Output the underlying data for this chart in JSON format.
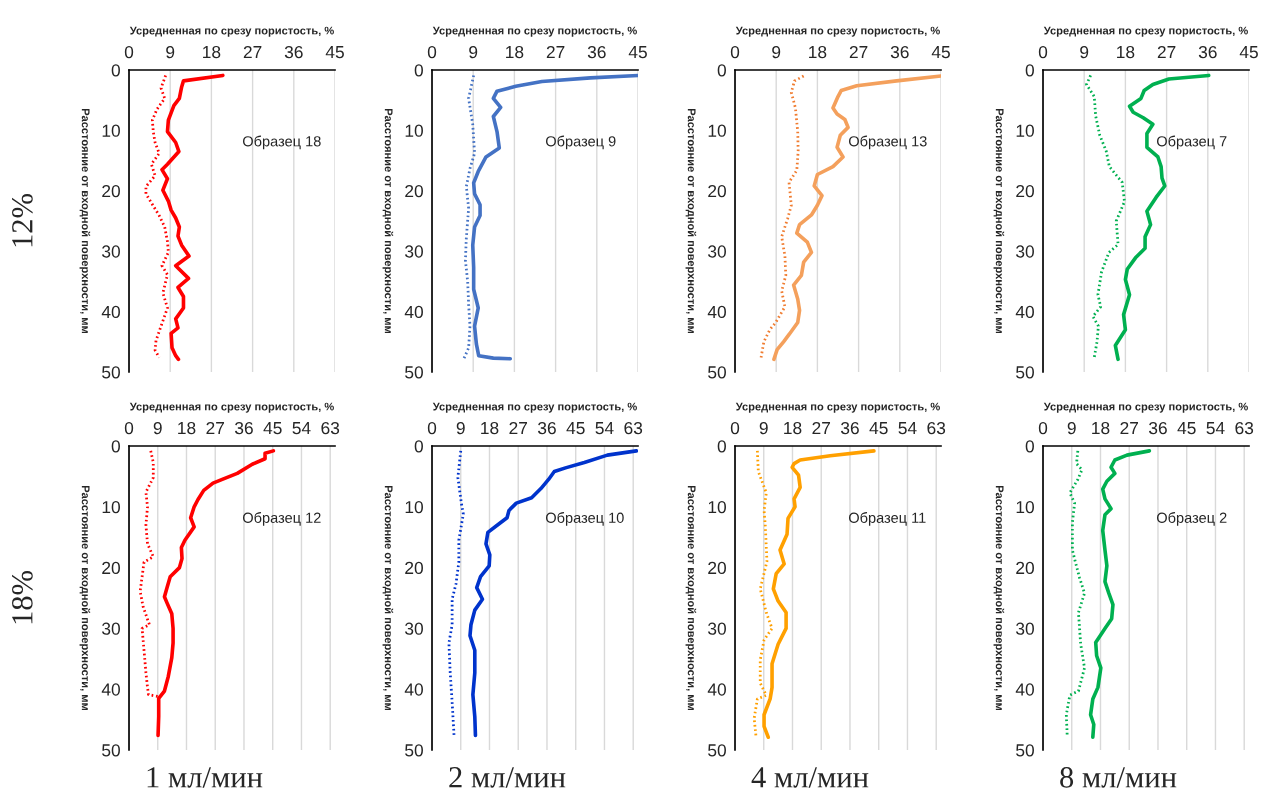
{
  "chart_data": [
    {
      "type": "line",
      "xlabel": "Усредненная по срезу пористость, %",
      "ylabel": "Расстояние от входной поверхности, мм",
      "xlim": [
        0,
        45
      ],
      "xticks": [
        0,
        9,
        18,
        27,
        36,
        45
      ],
      "ylim": [
        50,
        0
      ],
      "yticks": [
        0,
        10,
        20,
        30,
        40,
        50
      ],
      "grid": "x",
      "annotations": [
        "Образец 18",
        "12%"
      ],
      "series": [
        {
          "color": "#ff0000",
          "line_style": "solid",
          "x": [
            20.5,
            11.9,
            11.5,
            11,
            9.8,
            8.6,
            8.4,
            10.2,
            10.9,
            8.4,
            7.2,
            8.4,
            7.4,
            8.6,
            9.2,
            10.2,
            11,
            10.7,
            11.5,
            13.1,
            10.2,
            13,
            10.7,
            11.9,
            11.9,
            10.2,
            10.7,
            9.2,
            9.4,
            10.2,
            10.8
          ],
          "values": [
            0.9,
            1.8,
            2.8,
            4.7,
            5.9,
            8.3,
            10.2,
            12,
            13.5,
            15.6,
            16.5,
            18,
            19.9,
            21.7,
            23.2,
            24.5,
            26,
            27.5,
            29,
            30.8,
            32.4,
            34.5,
            36,
            37.5,
            39.4,
            41.2,
            42.7,
            43.6,
            46,
            47.3,
            47.9
          ]
        },
        {
          "color": "#ff0000",
          "line_style": "dotted",
          "x": [
            8,
            7,
            7.8,
            6.1,
            5.1,
            5.3,
            5.7,
            6.6,
            4.9,
            5.7,
            3.7,
            3.7,
            4.9,
            6.6,
            7.8,
            8.4,
            8.6,
            7.2,
            8.4,
            7.4,
            8.4,
            7,
            5.9,
            5.7,
            6.6
          ],
          "values": [
            0.9,
            3,
            4.7,
            6.5,
            8.3,
            10.2,
            12,
            13.8,
            15.6,
            17.5,
            19.3,
            20.5,
            22,
            24.1,
            26,
            28.4,
            30.2,
            32.4,
            33.9,
            36.9,
            39.4,
            42.4,
            44.8,
            46.4,
            47.6
          ]
        }
      ]
    },
    {
      "type": "line",
      "xlabel": "Усредненная по срезу пористость, %",
      "ylabel": "Расстояние от входной поверхности, мм",
      "xlim": [
        0,
        45
      ],
      "xticks": [
        0,
        9,
        18,
        27,
        36,
        45
      ],
      "ylim": [
        50,
        0
      ],
      "yticks": [
        0,
        10,
        20,
        30,
        40,
        50
      ],
      "grid": "x",
      "annotations": [
        "Образец 9"
      ],
      "series": [
        {
          "color": "#4472c4",
          "line_style": "solid",
          "x": [
            45,
            34.6,
            24,
            18.3,
            14.2,
            13.4,
            15,
            13.4,
            14.2,
            14.7,
            11.8,
            10.1,
            9.1,
            9.3,
            10.5,
            10.5,
            9.3,
            8.9,
            9.1,
            9.1,
            10.1,
            9.3,
            9.7,
            10.2,
            13.4,
            17.1
          ],
          "values": [
            0.9,
            1.3,
            1.9,
            2.7,
            3.5,
            4.7,
            6.2,
            7.7,
            10.2,
            12.9,
            14.4,
            16.8,
            18.7,
            20.5,
            22.3,
            24.1,
            26,
            29,
            32.7,
            36.3,
            39.4,
            42.4,
            45.4,
            47.3,
            47.7,
            47.8
          ]
        },
        {
          "color": "#4472c4",
          "line_style": "dotted",
          "x": [
            9.1,
            8,
            8.9,
            9.3,
            8.3,
            7.5,
            8,
            7.5,
            7.3,
            7.8,
            8,
            8.3,
            8,
            6.9
          ],
          "values": [
            0.9,
            4.7,
            9,
            13.8,
            16.3,
            19.3,
            22.9,
            27.8,
            31.5,
            35.1,
            38.8,
            42.4,
            46,
            47.9
          ]
        }
      ]
    },
    {
      "type": "line",
      "xlabel": "Усредненная по срезу пористость, %",
      "ylabel": "Расстояние от входной поверхности, мм",
      "xlim": [
        0,
        45
      ],
      "xticks": [
        0,
        9,
        18,
        27,
        36,
        45
      ],
      "ylim": [
        50,
        0
      ],
      "yticks": [
        0,
        10,
        20,
        30,
        40,
        50
      ],
      "grid": "x",
      "annotations": [
        "Образец 13"
      ],
      "series": [
        {
          "color": "#f4a05c",
          "line_style": "solid",
          "x": [
            45,
            35.3,
            26.6,
            23.2,
            22.5,
            21.4,
            22.3,
            24,
            24.7,
            23,
            22.3,
            23.6,
            21.4,
            18,
            17.3,
            19,
            18,
            16.7,
            14.1,
            13.5,
            15.8,
            16.7,
            15,
            14.5,
            12.8,
            13.7,
            14.1,
            13.7,
            11.9,
            10.6,
            9.2,
            8.5
          ],
          "values": [
            1,
            1.8,
            2.6,
            3.4,
            4.4,
            6.3,
            7.3,
            8.2,
            9.5,
            10.8,
            12.8,
            14.4,
            16,
            17.3,
            19.2,
            20.8,
            22.4,
            24,
            25.6,
            27,
            28.5,
            30.2,
            31.8,
            34,
            35.6,
            37.9,
            39.8,
            41.8,
            43.7,
            45,
            46.3,
            47.9
          ]
        },
        {
          "color": "#f07c30",
          "line_style": "dotted",
          "x": [
            15,
            13,
            12.3,
            13.2,
            13.7,
            13.8,
            13.5,
            11.8,
            12.3,
            11.5,
            10.2,
            10.9,
            11.1,
            10.2,
            10.9,
            8.9,
            7.6,
            6.3,
            5.7
          ],
          "values": [
            1,
            1.8,
            3.7,
            6.3,
            10.2,
            13.4,
            16.6,
            18.6,
            22.4,
            24.6,
            27.6,
            30.8,
            34,
            36.6,
            39.2,
            41.8,
            43,
            45,
            47.6
          ]
        }
      ]
    },
    {
      "type": "line",
      "xlabel": "Усредненная по срезу пористость, %",
      "ylabel": "Расстояние от входной поверхности, мм",
      "xlim": [
        0,
        45
      ],
      "xticks": [
        0,
        9,
        18,
        27,
        36,
        45
      ],
      "ylim": [
        50,
        0
      ],
      "yticks": [
        0,
        10,
        20,
        30,
        40,
        50
      ],
      "grid": "x",
      "annotations": [
        "Образец 7"
      ],
      "series": [
        {
          "color": "#00b050",
          "line_style": "solid",
          "x": [
            36.2,
            27.5,
            24,
            22.1,
            21.4,
            18.9,
            19.7,
            21.9,
            24,
            22.7,
            22.7,
            25.1,
            25.8,
            26,
            26.6,
            24.7,
            22.7,
            23.5,
            22.3,
            22.3,
            20.2,
            18.4,
            18,
            18.9,
            17.6,
            18,
            15.8,
            16.4
          ],
          "values": [
            0.9,
            1.5,
            2.4,
            3.4,
            4.7,
            6,
            7,
            7.9,
            9,
            10.5,
            12.8,
            14.4,
            16,
            17.9,
            19.2,
            21.1,
            23.4,
            25.6,
            27.6,
            29.5,
            31.1,
            33,
            34.7,
            37.2,
            40.5,
            43,
            45.6,
            47.9
          ]
        },
        {
          "color": "#00b050",
          "line_style": "dotted",
          "x": [
            10.4,
            9.5,
            11.2,
            11.5,
            12.4,
            13.8,
            14.5,
            17.3,
            17.8,
            16,
            16.4,
            14.4,
            12.8,
            12,
            12.6,
            10.9,
            12.1,
            11.8,
            11.2
          ],
          "values": [
            0.9,
            2.4,
            4.4,
            7.6,
            10.8,
            13.4,
            16,
            18.6,
            21.8,
            25,
            28.9,
            30.2,
            33.4,
            37.2,
            39.2,
            40.8,
            42.4,
            45,
            47.6
          ]
        }
      ]
    },
    {
      "type": "line",
      "xlabel": "Усредненная по срезу пористость, %",
      "ylabel": "Расстояние от входной поверхности, мм",
      "xlim": [
        0,
        64.5
      ],
      "xticks": [
        0,
        9,
        18,
        27,
        36,
        45,
        54,
        63
      ],
      "ylim": [
        50,
        0
      ],
      "yticks": [
        0,
        10,
        20,
        30,
        40,
        50
      ],
      "grid": "x",
      "annotations": [
        "Образец 12",
        "18%",
        "1 мл/мин"
      ],
      "series": [
        {
          "color": "#ff0000",
          "line_style": "solid",
          "x": [
            45.2,
            42.6,
            42.6,
            38.6,
            33.9,
            29.2,
            26.3,
            23.4,
            21.6,
            20.4,
            19.3,
            20.4,
            17.5,
            16.4,
            16.6,
            15.8,
            12.9,
            11.9,
            11.1,
            11.9,
            13.4,
            13.8,
            13.8,
            13.4,
            12.3,
            11.1,
            9.3,
            9.3,
            9.1
          ],
          "values": [
            0.8,
            1.2,
            2.1,
            3,
            4.5,
            5.5,
            6.1,
            7.3,
            8.8,
            10,
            11.8,
            13.3,
            15.5,
            16.7,
            18.5,
            20,
            21.5,
            23.3,
            24.8,
            25.8,
            27.6,
            30,
            32.4,
            34.8,
            37.9,
            40.3,
            41.5,
            44.5,
            47.6
          ]
        },
        {
          "color": "#ff0000",
          "line_style": "dotted",
          "x": [
            6.8,
            7.6,
            7.6,
            5.3,
            5.8,
            5.3,
            5.8,
            7.6,
            4.7,
            4.1,
            3.5,
            4.4,
            6.4,
            4.1,
            4.7,
            5.3,
            5.8,
            6.1,
            9.3
          ],
          "values": [
            0.8,
            2.7,
            5.2,
            7.6,
            10,
            13,
            16.1,
            18.2,
            19.1,
            21.5,
            23.9,
            26.4,
            29.4,
            30,
            33.6,
            37.3,
            39.7,
            40.9,
            41.2
          ]
        }
      ]
    },
    {
      "type": "line",
      "xlabel": "Усредненная по срезу пористость, %",
      "ylabel": "Расстояние от входной поверхности, мм",
      "xlim": [
        0,
        64.5
      ],
      "xticks": [
        0,
        9,
        18,
        27,
        36,
        45,
        54,
        63
      ],
      "ylim": [
        50,
        0
      ],
      "yticks": [
        0,
        10,
        20,
        30,
        40,
        50
      ],
      "grid": "x",
      "annotations": [
        "Образец 10",
        "2 мл/мин"
      ],
      "series": [
        {
          "color": "#0033cc",
          "line_style": "solid",
          "x": [
            64,
            54.9,
            47.7,
            41.8,
            38.3,
            36.5,
            34.1,
            31.2,
            26.4,
            24.1,
            23.5,
            20.5,
            17.5,
            16.9,
            18.1,
            17.9,
            15.2,
            14,
            15.8,
            13.4,
            12.2,
            11.9,
            13.4,
            13.4,
            12.8,
            13.4,
            13.6
          ],
          "values": [
            0.8,
            1.5,
            2.7,
            3.6,
            4.2,
            5.5,
            7,
            8.5,
            9.4,
            10.6,
            11.8,
            13,
            14.2,
            16.1,
            17.9,
            19.7,
            21.5,
            23.3,
            25.2,
            27,
            29.4,
            31.2,
            33.6,
            37.3,
            40.9,
            44.5,
            47.6
          ]
        },
        {
          "color": "#0033cc",
          "line_style": "dotted",
          "x": [
            9,
            8.1,
            9.2,
            9.8,
            8.4,
            8.4,
            7.5,
            6.3,
            6.3,
            5.3,
            5.7,
            6.3,
            6.9
          ],
          "values": [
            0.8,
            5.2,
            9.4,
            11.2,
            15.5,
            19.1,
            22.7,
            25.2,
            29.4,
            32.4,
            37.3,
            42.1,
            47.6
          ]
        }
      ]
    },
    {
      "type": "line",
      "xlabel": "Усредненная по срезу пористость, %",
      "ylabel": "Расстояние от входной поверхности, мм",
      "xlim": [
        0,
        64.5
      ],
      "xticks": [
        0,
        9,
        18,
        27,
        36,
        45,
        54,
        63
      ],
      "ylim": [
        50,
        0
      ],
      "yticks": [
        0,
        10,
        20,
        30,
        40,
        50
      ],
      "grid": "x",
      "annotations": [
        "Образец 11",
        "4 мл/мин"
      ],
      "series": [
        {
          "color": "#ffa000",
          "line_style": "solid",
          "x": [
            43.5,
            29.8,
            20.4,
            18.5,
            17.9,
            19.9,
            20.4,
            18.5,
            18.8,
            16.6,
            16.3,
            14.1,
            15.4,
            12.9,
            12,
            13.5,
            16,
            16,
            13.5,
            11.6,
            11.6,
            11,
            9.1,
            9.1,
            10.4
          ],
          "values": [
            0.8,
            1.6,
            2.3,
            2.9,
            3.5,
            4.8,
            6.8,
            8.7,
            10,
            11.9,
            14.5,
            17.1,
            19.4,
            21,
            23.5,
            25.5,
            27.4,
            30,
            32.6,
            35.8,
            39.7,
            41.6,
            44.2,
            46.1,
            47.9
          ]
        },
        {
          "color": "#ffa000",
          "line_style": "dotted",
          "x": [
            7,
            7.3,
            9.8,
            9.1,
            9.5,
            10,
            7.9,
            9.8,
            11.6,
            9.1,
            7.9,
            7.9,
            9.8,
            7,
            6,
            6.6
          ],
          "values": [
            0.8,
            4.2,
            7.7,
            10.6,
            13.2,
            19,
            23.5,
            27.4,
            30,
            31.9,
            35.2,
            39,
            41,
            41.6,
            44.8,
            47.9
          ]
        }
      ]
    },
    {
      "type": "line",
      "xlabel": "Усредненная по срезу пористость, %",
      "ylabel": "Расстояние от входной поверхности, мм",
      "xlim": [
        0,
        64.5
      ],
      "xticks": [
        0,
        9,
        18,
        27,
        36,
        45,
        54,
        63
      ],
      "ylim": [
        50,
        0
      ],
      "yticks": [
        0,
        10,
        20,
        30,
        40,
        50
      ],
      "grid": "x",
      "annotations": [
        "Образец 2",
        "8 мл/мин"
      ],
      "series": [
        {
          "color": "#00b050",
          "line_style": "solid",
          "x": [
            33.3,
            26.3,
            22.5,
            21.3,
            22.5,
            20,
            18.7,
            19.4,
            21.3,
            19.4,
            18.7,
            19.4,
            20,
            19.4,
            20.6,
            21.9,
            21.5,
            19.4,
            16.5,
            16.8,
            18.1,
            17.2,
            15.6,
            14.9,
            15.9,
            15.6
          ],
          "values": [
            0.8,
            1.5,
            2.3,
            3.5,
            4.5,
            5.8,
            7.1,
            8.7,
            10.3,
            11.3,
            13.9,
            17.1,
            19.7,
            22.3,
            24.2,
            26.1,
            28.4,
            30,
            32.3,
            34.5,
            36.5,
            39.7,
            41.6,
            44.2,
            45.8,
            47.9
          ]
        },
        {
          "color": "#00b050",
          "line_style": "dotted",
          "x": [
            10.9,
            10.5,
            12.2,
            10.9,
            8.4,
            9.9,
            9.2,
            9.2,
            10.1,
            11.4,
            13,
            11.1,
            11.8,
            13,
            11.1,
            8.4,
            7.3,
            7.6
          ],
          "values": [
            0.8,
            2.9,
            3.9,
            5.5,
            7.7,
            9.4,
            12.6,
            17.1,
            19,
            21.6,
            24.2,
            27.4,
            32.6,
            36.5,
            40.3,
            41,
            44.2,
            47.9
          ]
        }
      ]
    }
  ]
}
